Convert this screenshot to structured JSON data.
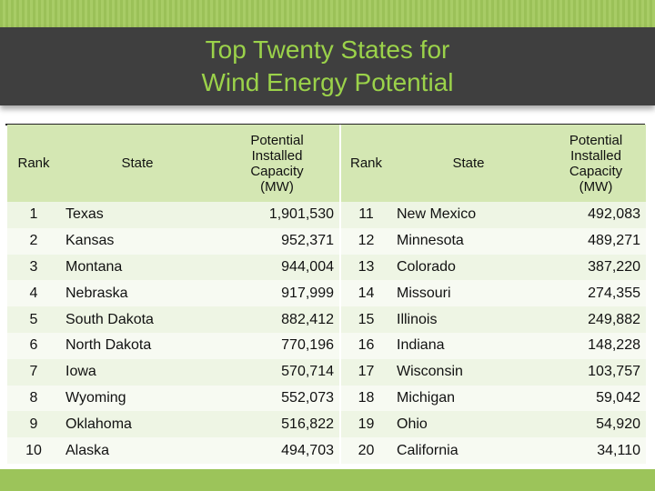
{
  "slide": {
    "title_line1": "Top Twenty States for",
    "title_line2": "Wind Energy Potential"
  },
  "table": {
    "headers": {
      "rank": "Rank",
      "state": "State",
      "capacity": "Potential Installed Capacity (MW)"
    },
    "rows": [
      {
        "rank_a": "1",
        "state_a": "Texas",
        "cap_a": "1,901,530",
        "rank_b": "11",
        "state_b": "New Mexico",
        "cap_b": "492,083"
      },
      {
        "rank_a": "2",
        "state_a": "Kansas",
        "cap_a": "952,371",
        "rank_b": "12",
        "state_b": "Minnesota",
        "cap_b": "489,271"
      },
      {
        "rank_a": "3",
        "state_a": "Montana",
        "cap_a": "944,004",
        "rank_b": "13",
        "state_b": "Colorado",
        "cap_b": "387,220"
      },
      {
        "rank_a": "4",
        "state_a": "Nebraska",
        "cap_a": "917,999",
        "rank_b": "14",
        "state_b": "Missouri",
        "cap_b": "274,355"
      },
      {
        "rank_a": "5",
        "state_a": "South Dakota",
        "cap_a": "882,412",
        "rank_b": "15",
        "state_b": "Illinois",
        "cap_b": "249,882"
      },
      {
        "rank_a": "6",
        "state_a": "North Dakota",
        "cap_a": "770,196",
        "rank_b": "16",
        "state_b": "Indiana",
        "cap_b": "148,228"
      },
      {
        "rank_a": "7",
        "state_a": "Iowa",
        "cap_a": "570,714",
        "rank_b": "17",
        "state_b": "Wisconsin",
        "cap_b": "103,757"
      },
      {
        "rank_a": "8",
        "state_a": "Wyoming",
        "cap_a": "552,073",
        "rank_b": "18",
        "state_b": "Michigan",
        "cap_b": "59,042"
      },
      {
        "rank_a": "9",
        "state_a": "Oklahoma",
        "cap_a": "516,822",
        "rank_b": "19",
        "state_b": "Ohio",
        "cap_b": "54,920"
      },
      {
        "rank_a": "10",
        "state_a": "Alaska",
        "cap_a": "494,703",
        "rank_b": "20",
        "state_b": "California",
        "cap_b": "34,110"
      }
    ]
  },
  "colors": {
    "accent_green": "#9bd24a",
    "banner": "#3f3f3f",
    "header_row": "#d4e7b3"
  }
}
